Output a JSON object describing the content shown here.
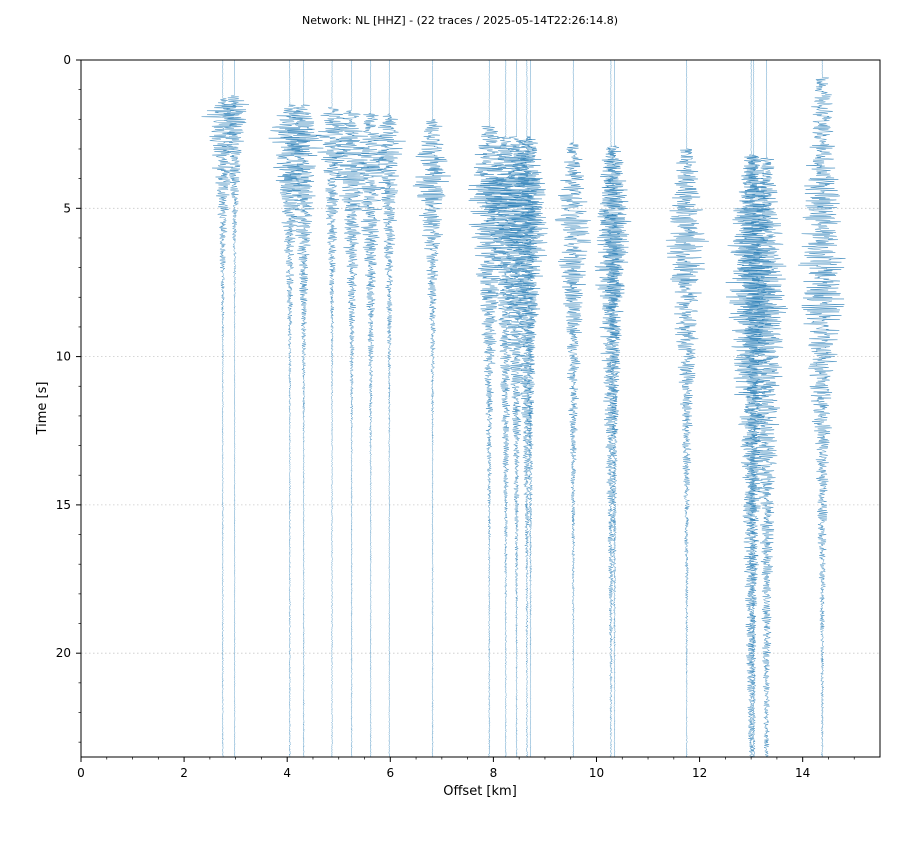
{
  "chart_data": {
    "type": "line",
    "title": "Network: NL [HHZ] - (22 traces / 2025-05-14T22:26:14.8)",
    "xlabel": "Offset [km]",
    "ylabel": "Time [s]",
    "xlim": [
      0,
      15.5
    ],
    "ylim": [
      23.5,
      0
    ],
    "y_inverted": true,
    "x_ticks": [
      0,
      2,
      4,
      6,
      8,
      10,
      12,
      14
    ],
    "y_ticks": [
      0,
      5,
      10,
      15,
      20
    ],
    "grid": "horizontal dotted",
    "trace_color": "#2c7fb8",
    "series": [
      {
        "offset_km": 2.75,
        "onset_s": 1.3,
        "peak_s": 1.8,
        "duration_s": 4.5,
        "amp_km": 0.4
      },
      {
        "offset_km": 2.98,
        "onset_s": 1.2,
        "peak_s": 1.6,
        "duration_s": 4.0,
        "amp_km": 0.3
      },
      {
        "offset_km": 4.05,
        "onset_s": 1.5,
        "peak_s": 2.4,
        "duration_s": 5.0,
        "amp_km": 0.45
      },
      {
        "offset_km": 4.32,
        "onset_s": 1.5,
        "peak_s": 2.8,
        "duration_s": 5.5,
        "amp_km": 0.4
      },
      {
        "offset_km": 4.87,
        "onset_s": 1.6,
        "peak_s": 2.2,
        "duration_s": 5.0,
        "amp_km": 0.35
      },
      {
        "offset_km": 5.25,
        "onset_s": 1.7,
        "peak_s": 3.2,
        "duration_s": 5.5,
        "amp_km": 0.4
      },
      {
        "offset_km": 5.62,
        "onset_s": 1.8,
        "peak_s": 3.4,
        "duration_s": 6.0,
        "amp_km": 0.35
      },
      {
        "offset_km": 5.98,
        "onset_s": 1.8,
        "peak_s": 2.6,
        "duration_s": 6.0,
        "amp_km": 0.3
      },
      {
        "offset_km": 6.82,
        "onset_s": 2.0,
        "peak_s": 3.8,
        "duration_s": 5.0,
        "amp_km": 0.4
      },
      {
        "offset_km": 7.92,
        "onset_s": 2.2,
        "peak_s": 4.6,
        "duration_s": 7.0,
        "amp_km": 0.45
      },
      {
        "offset_km": 8.24,
        "onset_s": 2.6,
        "peak_s": 4.2,
        "duration_s": 8.0,
        "amp_km": 0.45
      },
      {
        "offset_km": 8.45,
        "onset_s": 2.6,
        "peak_s": 4.8,
        "duration_s": 8.0,
        "amp_km": 0.45
      },
      {
        "offset_km": 8.65,
        "onset_s": 2.6,
        "peak_s": 5.4,
        "duration_s": 8.0,
        "amp_km": 0.45
      },
      {
        "offset_km": 8.72,
        "onset_s": 2.6,
        "peak_s": 4.4,
        "duration_s": 8.5,
        "amp_km": 0.3
      },
      {
        "offset_km": 9.55,
        "onset_s": 2.8,
        "peak_s": 5.6,
        "duration_s": 8.0,
        "amp_km": 0.35
      },
      {
        "offset_km": 10.28,
        "onset_s": 2.9,
        "peak_s": 6.2,
        "duration_s": 10.0,
        "amp_km": 0.35
      },
      {
        "offset_km": 10.35,
        "onset_s": 2.9,
        "peak_s": 5.2,
        "duration_s": 9.0,
        "amp_km": 0.3
      },
      {
        "offset_km": 11.75,
        "onset_s": 3.0,
        "peak_s": 6.3,
        "duration_s": 8.0,
        "amp_km": 0.4
      },
      {
        "offset_km": 13.0,
        "onset_s": 3.2,
        "peak_s": 7.5,
        "duration_s": 13.0,
        "amp_km": 0.5
      },
      {
        "offset_km": 13.05,
        "onset_s": 3.2,
        "peak_s": 6.0,
        "duration_s": 12.0,
        "amp_km": 0.4
      },
      {
        "offset_km": 13.3,
        "onset_s": 3.3,
        "peak_s": 8.0,
        "duration_s": 13.0,
        "amp_km": 0.4
      },
      {
        "offset_km": 14.38,
        "onset_s": 0.6,
        "peak_s": 7.5,
        "duration_s": 9.0,
        "amp_km": 0.45
      }
    ]
  }
}
